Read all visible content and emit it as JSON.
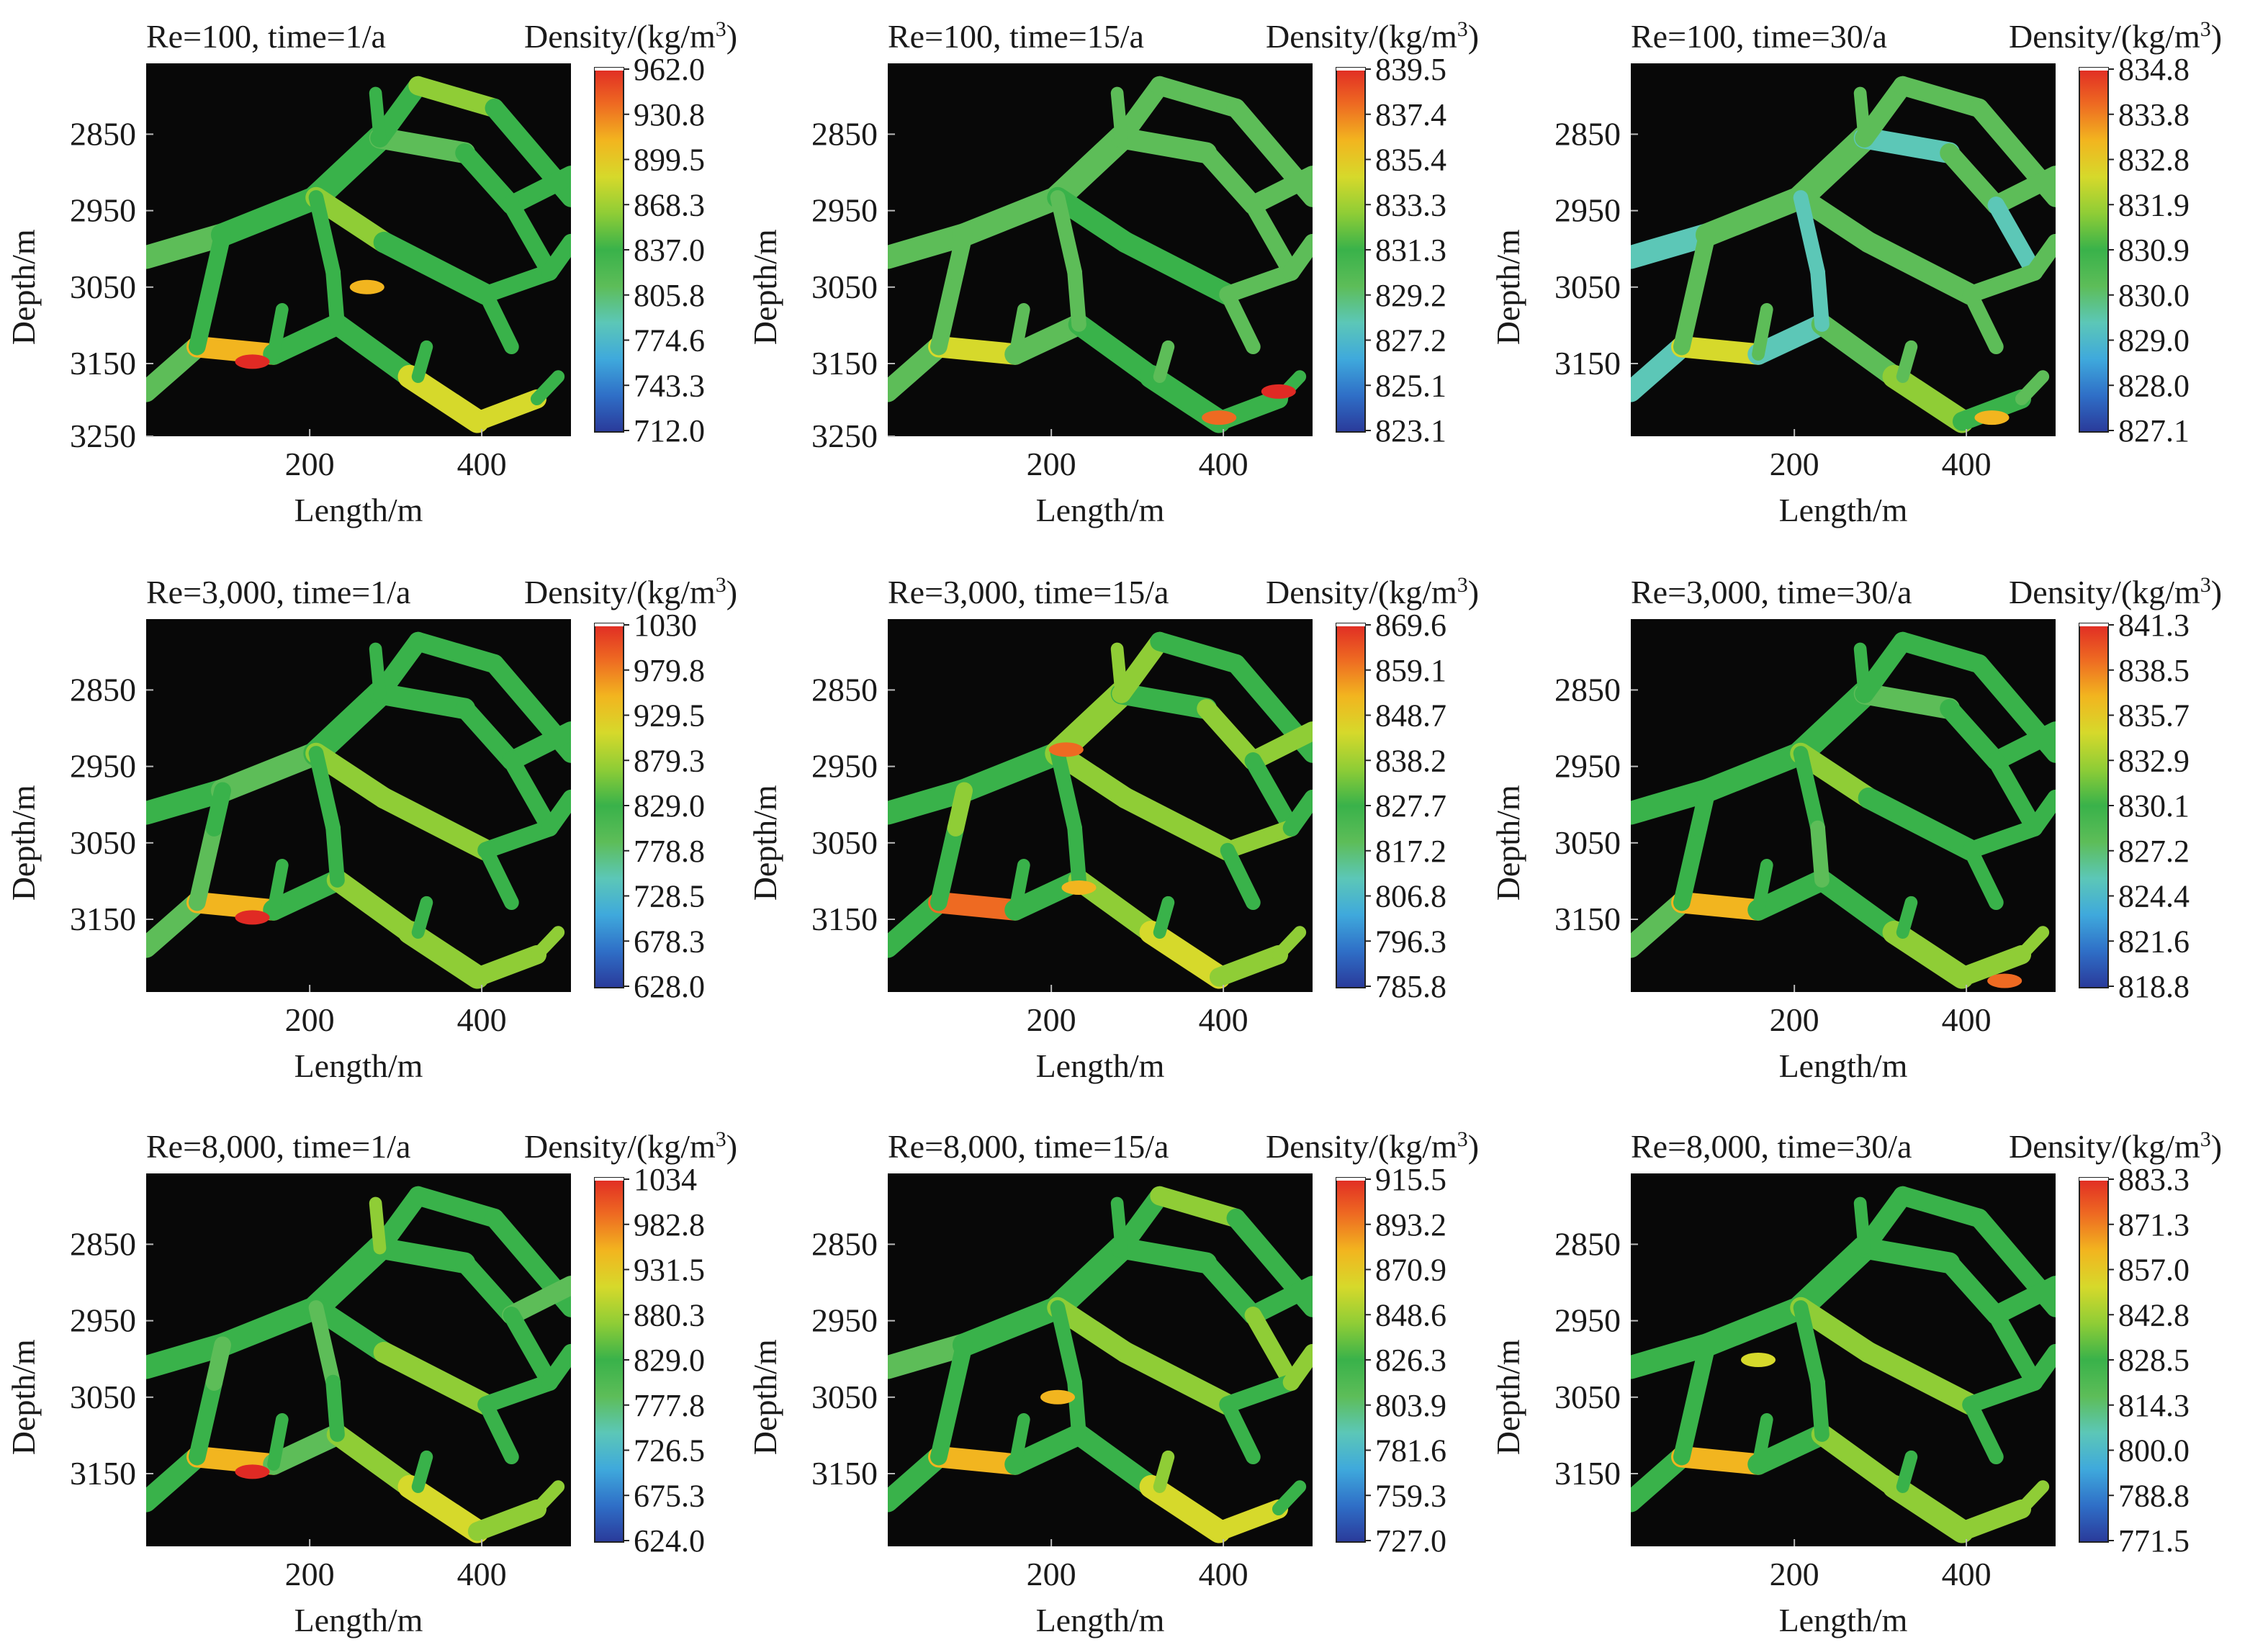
{
  "figure": {
    "type": "heatmap-grid",
    "rows": 3,
    "cols": 3
  },
  "colormap": [
    "#2a3a9a",
    "#2f6fc7",
    "#3fa9dc",
    "#5cc7b7",
    "#5dbd58",
    "#39b24a",
    "#8fcd36",
    "#d6d92b",
    "#f2b51f",
    "#ee6a22",
    "#e02a24"
  ],
  "chart_data": [
    {
      "type": "heatmap",
      "title": "Re=100, time=1/a",
      "colorbar_title": "Density/(kg/m",
      "colorbar_title_sup": "3",
      "colorbar_title_end": ")",
      "colorbar_ticks": [
        "962.0",
        "930.8",
        "899.5",
        "868.3",
        "837.0",
        "805.8",
        "774.6",
        "743.3",
        "712.0"
      ],
      "xlabel": "Length/m",
      "ylabel": "Depth/m",
      "x_ticks": [
        "200",
        "400"
      ],
      "y_ticks": [
        "2850",
        "2950",
        "3050",
        "3150",
        "3250"
      ],
      "bias": 0.0,
      "hot_spots": [
        [
          0.25,
          0.8,
          0.95
        ],
        [
          0.52,
          0.6,
          0.8
        ]
      ]
    },
    {
      "type": "heatmap",
      "title": "Re=100, time=15/a",
      "colorbar_title": "Density/(kg/m",
      "colorbar_title_sup": "3",
      "colorbar_title_end": ")",
      "colorbar_ticks": [
        "839.5",
        "837.4",
        "835.4",
        "833.3",
        "831.3",
        "829.2",
        "827.2",
        "825.1",
        "823.1"
      ],
      "xlabel": "Length/m",
      "ylabel": "Depth/m",
      "x_ticks": [
        "200",
        "400"
      ],
      "y_ticks": [
        "2850",
        "2950",
        "3050",
        "3150",
        "3250"
      ],
      "bias": -0.1,
      "hot_spots": [
        [
          0.78,
          0.95,
          0.9
        ],
        [
          0.92,
          0.88,
          0.95
        ]
      ]
    },
    {
      "type": "heatmap",
      "title": "Re=100, time=30/a",
      "colorbar_title": "Density/(kg/m",
      "colorbar_title_sup": "3",
      "colorbar_title_end": ")",
      "colorbar_ticks": [
        "834.8",
        "833.8",
        "832.8",
        "831.9",
        "830.9",
        "830.0",
        "829.0",
        "828.0",
        "827.1"
      ],
      "xlabel": "Length/m",
      "ylabel": "Depth/m",
      "x_ticks": [
        "200",
        "400"
      ],
      "y_ticks": [
        "2850",
        "2950",
        "3050",
        "3150"
      ],
      "bias": -0.12,
      "hot_spots": [
        [
          0.85,
          0.95,
          0.75
        ]
      ]
    },
    {
      "type": "heatmap",
      "title": "Re=3,000, time=1/a",
      "colorbar_title": "Density/(kg/m",
      "colorbar_title_sup": "3",
      "colorbar_title_end": ")",
      "colorbar_ticks": [
        "1030",
        "979.8",
        "929.5",
        "879.3",
        "829.0",
        "778.8",
        "728.5",
        "678.3",
        "628.0"
      ],
      "xlabel": "Length/m",
      "ylabel": "Depth/m",
      "x_ticks": [
        "200",
        "400"
      ],
      "y_ticks": [
        "2850",
        "2950",
        "3050",
        "3150"
      ],
      "bias": 0.0,
      "hot_spots": [
        [
          0.25,
          0.8,
          0.95
        ]
      ]
    },
    {
      "type": "heatmap",
      "title": "Re=3,000, time=15/a",
      "colorbar_title": "Density/(kg/m",
      "colorbar_title_sup": "3",
      "colorbar_title_end": ")",
      "colorbar_ticks": [
        "869.6",
        "859.1",
        "848.7",
        "838.2",
        "827.7",
        "817.2",
        "806.8",
        "796.3",
        "785.8"
      ],
      "xlabel": "Length/m",
      "ylabel": "Depth/m",
      "x_ticks": [
        "200",
        "400"
      ],
      "y_ticks": [
        "2850",
        "2950",
        "3050",
        "3150"
      ],
      "bias": 0.05,
      "hot_spots": [
        [
          0.42,
          0.35,
          0.9
        ],
        [
          0.45,
          0.72,
          0.8
        ]
      ]
    },
    {
      "type": "heatmap",
      "title": "Re=3,000, time=30/a",
      "colorbar_title": "Density/(kg/m",
      "colorbar_title_sup": "3",
      "colorbar_title_end": ")",
      "colorbar_ticks": [
        "841.3",
        "838.5",
        "835.7",
        "832.9",
        "830.1",
        "827.2",
        "824.4",
        "821.6",
        "818.8"
      ],
      "xlabel": "Length/m",
      "ylabel": "Depth/m",
      "x_ticks": [
        "200",
        "400"
      ],
      "y_ticks": [
        "2850",
        "2950",
        "3050",
        "3150"
      ],
      "bias": 0.0,
      "hot_spots": [
        [
          0.88,
          0.97,
          0.85
        ]
      ]
    },
    {
      "type": "heatmap",
      "title": "Re=8,000, time=1/a",
      "colorbar_title": "Density/(kg/m",
      "colorbar_title_sup": "3",
      "colorbar_title_end": ")",
      "colorbar_ticks": [
        "1034",
        "982.8",
        "931.5",
        "880.3",
        "829.0",
        "777.8",
        "726.5",
        "675.3",
        "624.0"
      ],
      "xlabel": "Length/m",
      "ylabel": "Depth/m",
      "x_ticks": [
        "200",
        "400"
      ],
      "y_ticks": [
        "2850",
        "2950",
        "3050",
        "3150"
      ],
      "bias": 0.0,
      "hot_spots": [
        [
          0.25,
          0.8,
          0.95
        ]
      ]
    },
    {
      "type": "heatmap",
      "title": "Re=8,000, time=15/a",
      "colorbar_title": "Density/(kg/m",
      "colorbar_title_sup": "3",
      "colorbar_title_end": ")",
      "colorbar_ticks": [
        "915.5",
        "893.2",
        "870.9",
        "848.6",
        "826.3",
        "803.9",
        "781.6",
        "759.3",
        "727.0"
      ],
      "xlabel": "Length/m",
      "ylabel": "Depth/m",
      "x_ticks": [
        "200",
        "400"
      ],
      "y_ticks": [
        "2850",
        "2950",
        "3050",
        "3150"
      ],
      "bias": 0.02,
      "hot_spots": [
        [
          0.4,
          0.6,
          0.8
        ]
      ]
    },
    {
      "type": "heatmap",
      "title": "Re=8,000, time=30/a",
      "colorbar_title": "Density/(kg/m",
      "colorbar_title_sup": "3",
      "colorbar_title_end": ")",
      "colorbar_ticks": [
        "883.3",
        "871.3",
        "857.0",
        "842.8",
        "828.5",
        "814.3",
        "800.0",
        "788.8",
        "771.5"
      ],
      "xlabel": "Length/m",
      "ylabel": "Depth/m",
      "x_ticks": [
        "200",
        "400"
      ],
      "y_ticks": [
        "2850",
        "2950",
        "3050",
        "3150"
      ],
      "bias": 0.0,
      "hot_spots": [
        [
          0.3,
          0.5,
          0.7
        ]
      ]
    }
  ]
}
